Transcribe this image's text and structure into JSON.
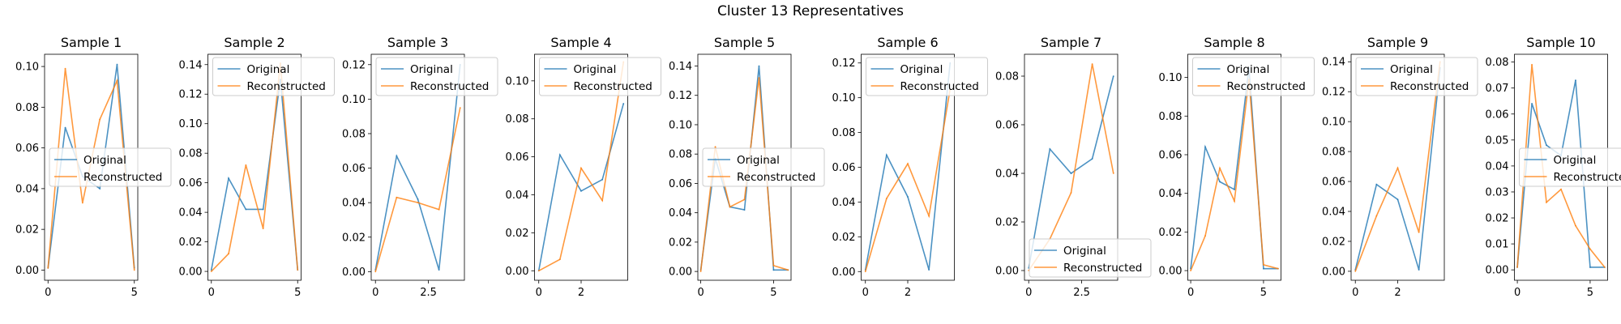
{
  "figure": {
    "suptitle": "Cluster 13 Representatives"
  },
  "chart_data": [
    {
      "type": "line",
      "title": "Sample 1",
      "xlabel": "",
      "ylabel": "",
      "xlim": [
        -0.2,
        5.2
      ],
      "ylim": [
        -0.005,
        0.106
      ],
      "xticks": [
        0,
        5
      ],
      "yticks": [
        0.0,
        0.02,
        0.04,
        0.06,
        0.08,
        0.1
      ],
      "ytick_decimals": 2,
      "legend": "center-left",
      "series": [
        {
          "name": "Original",
          "color": "#1f77b4",
          "x": [
            0,
            1,
            2,
            3,
            4,
            5
          ],
          "y": [
            0.001,
            0.07,
            0.046,
            0.04,
            0.101,
            0.001
          ]
        },
        {
          "name": "Reconstructed",
          "color": "#ff7f0e",
          "x": [
            0,
            1,
            2,
            3,
            4,
            5
          ],
          "y": [
            0.001,
            0.099,
            0.033,
            0.074,
            0.093,
            0.0
          ]
        }
      ]
    },
    {
      "type": "line",
      "title": "Sample 2",
      "xlabel": "",
      "ylabel": "",
      "xlim": [
        -0.2,
        5.2
      ],
      "ylim": [
        -0.006,
        0.147
      ],
      "xticks": [
        0,
        5
      ],
      "yticks": [
        0.0,
        0.02,
        0.04,
        0.06,
        0.08,
        0.1,
        0.12,
        0.14
      ],
      "ytick_decimals": 2,
      "legend": "upper-left",
      "series": [
        {
          "name": "Original",
          "color": "#1f77b4",
          "x": [
            0,
            1,
            2,
            3,
            4,
            5
          ],
          "y": [
            0.001,
            0.063,
            0.042,
            0.042,
            0.13,
            0.001
          ]
        },
        {
          "name": "Reconstructed",
          "color": "#ff7f0e",
          "x": [
            0,
            1,
            2,
            3,
            4,
            5
          ],
          "y": [
            0.0,
            0.012,
            0.072,
            0.029,
            0.141,
            0.001
          ]
        }
      ]
    },
    {
      "type": "line",
      "title": "Sample 3",
      "xlabel": "",
      "ylabel": "",
      "xlim": [
        -0.2,
        4.2
      ],
      "ylim": [
        -0.005,
        0.126
      ],
      "xticks": [
        0,
        2.5
      ],
      "yticks": [
        0.0,
        0.02,
        0.04,
        0.06,
        0.08,
        0.1,
        0.12
      ],
      "ytick_decimals": 2,
      "legend": "upper-left",
      "series": [
        {
          "name": "Original",
          "color": "#1f77b4",
          "x": [
            0,
            1,
            2,
            3,
            4
          ],
          "y": [
            0.001,
            0.067,
            0.042,
            0.001,
            0.12
          ]
        },
        {
          "name": "Reconstructed",
          "color": "#ff7f0e",
          "x": [
            0,
            1,
            2,
            3,
            4
          ],
          "y": [
            0.0,
            0.043,
            0.04,
            0.036,
            0.095
          ]
        }
      ]
    },
    {
      "type": "line",
      "title": "Sample 4",
      "xlabel": "",
      "ylabel": "",
      "xlim": [
        -0.2,
        4.2
      ],
      "ylim": [
        -0.005,
        0.114
      ],
      "xticks": [
        0,
        2
      ],
      "yticks": [
        0.0,
        0.02,
        0.04,
        0.06,
        0.08,
        0.1
      ],
      "ytick_decimals": 2,
      "legend": "upper-left",
      "series": [
        {
          "name": "Original",
          "color": "#1f77b4",
          "x": [
            0,
            1,
            2,
            3,
            4
          ],
          "y": [
            0.0,
            0.061,
            0.042,
            0.048,
            0.088
          ]
        },
        {
          "name": "Reconstructed",
          "color": "#ff7f0e",
          "x": [
            0,
            1,
            2,
            3,
            4
          ],
          "y": [
            0.0,
            0.006,
            0.054,
            0.037,
            0.11
          ]
        }
      ]
    },
    {
      "type": "line",
      "title": "Sample 5",
      "xlabel": "",
      "ylabel": "",
      "xlim": [
        -0.2,
        6.2
      ],
      "ylim": [
        -0.006,
        0.148
      ],
      "xticks": [
        0,
        5
      ],
      "yticks": [
        0.0,
        0.02,
        0.04,
        0.06,
        0.08,
        0.1,
        0.12,
        0.14
      ],
      "ytick_decimals": 2,
      "legend": "center-left",
      "series": [
        {
          "name": "Original",
          "color": "#1f77b4",
          "x": [
            0,
            1,
            2,
            3,
            4,
            5,
            6
          ],
          "y": [
            0.001,
            0.077,
            0.044,
            0.042,
            0.14,
            0.001,
            0.001
          ]
        },
        {
          "name": "Reconstructed",
          "color": "#ff7f0e",
          "x": [
            0,
            1,
            2,
            3,
            4,
            5,
            6
          ],
          "y": [
            0.0,
            0.085,
            0.044,
            0.049,
            0.132,
            0.004,
            0.001
          ]
        }
      ]
    },
    {
      "type": "line",
      "title": "Sample 6",
      "xlabel": "",
      "ylabel": "",
      "xlim": [
        -0.2,
        4.2
      ],
      "ylim": [
        -0.005,
        0.125
      ],
      "xticks": [
        0,
        2
      ],
      "yticks": [
        0.0,
        0.02,
        0.04,
        0.06,
        0.08,
        0.1,
        0.12
      ],
      "ytick_decimals": 2,
      "legend": "upper-left",
      "series": [
        {
          "name": "Original",
          "color": "#1f77b4",
          "x": [
            0,
            1,
            2,
            3,
            4
          ],
          "y": [
            0.001,
            0.067,
            0.043,
            0.001,
            0.12
          ]
        },
        {
          "name": "Reconstructed",
          "color": "#ff7f0e",
          "x": [
            0,
            1,
            2,
            3,
            4
          ],
          "y": [
            0.0,
            0.042,
            0.062,
            0.032,
            0.105
          ]
        }
      ]
    },
    {
      "type": "line",
      "title": "Sample 7",
      "xlabel": "",
      "ylabel": "",
      "xlim": [
        -0.2,
        4.2
      ],
      "ylim": [
        -0.004,
        0.089
      ],
      "xticks": [
        0,
        2.5
      ],
      "yticks": [
        0.0,
        0.02,
        0.04,
        0.06,
        0.08
      ],
      "ytick_decimals": 2,
      "legend": "lower-left",
      "series": [
        {
          "name": "Original",
          "color": "#1f77b4",
          "x": [
            0,
            1,
            2,
            3,
            4
          ],
          "y": [
            0.001,
            0.05,
            0.04,
            0.046,
            0.08
          ]
        },
        {
          "name": "Reconstructed",
          "color": "#ff7f0e",
          "x": [
            0,
            1,
            2,
            3,
            4
          ],
          "y": [
            0.0,
            0.013,
            0.032,
            0.085,
            0.04
          ]
        }
      ]
    },
    {
      "type": "line",
      "title": "Sample 8",
      "xlabel": "",
      "ylabel": "",
      "xlim": [
        -0.2,
        6.2
      ],
      "ylim": [
        -0.005,
        0.112
      ],
      "xticks": [
        0,
        5
      ],
      "yticks": [
        0.0,
        0.02,
        0.04,
        0.06,
        0.08,
        0.1
      ],
      "ytick_decimals": 2,
      "legend": "upper-left",
      "series": [
        {
          "name": "Original",
          "color": "#1f77b4",
          "x": [
            0,
            1,
            2,
            3,
            4,
            5,
            6
          ],
          "y": [
            0.001,
            0.064,
            0.046,
            0.042,
            0.105,
            0.001,
            0.001
          ]
        },
        {
          "name": "Reconstructed",
          "color": "#ff7f0e",
          "x": [
            0,
            1,
            2,
            3,
            4,
            5,
            6
          ],
          "y": [
            0.0,
            0.018,
            0.053,
            0.036,
            0.099,
            0.003,
            0.001
          ]
        }
      ]
    },
    {
      "type": "line",
      "title": "Sample 9",
      "xlabel": "",
      "ylabel": "",
      "xlim": [
        -0.2,
        4.2
      ],
      "ylim": [
        -0.006,
        0.145
      ],
      "xticks": [
        0,
        2
      ],
      "yticks": [
        0.0,
        0.02,
        0.04,
        0.06,
        0.08,
        0.1,
        0.12,
        0.14
      ],
      "ytick_decimals": 2,
      "legend": "upper-left",
      "series": [
        {
          "name": "Original",
          "color": "#1f77b4",
          "x": [
            0,
            1,
            2,
            3,
            4
          ],
          "y": [
            0.001,
            0.058,
            0.048,
            0.001,
            0.136
          ]
        },
        {
          "name": "Reconstructed",
          "color": "#ff7f0e",
          "x": [
            0,
            1,
            2,
            3,
            4
          ],
          "y": [
            0.0,
            0.037,
            0.069,
            0.026,
            0.14
          ]
        }
      ]
    },
    {
      "type": "line",
      "title": "Sample 10",
      "xlabel": "",
      "ylabel": "",
      "xlim": [
        -0.2,
        6.2
      ],
      "ylim": [
        -0.004,
        0.083
      ],
      "xticks": [
        0,
        5
      ],
      "yticks": [
        0.0,
        0.01,
        0.02,
        0.03,
        0.04,
        0.05,
        0.06,
        0.07,
        0.08
      ],
      "ytick_decimals": 2,
      "legend": "center-left",
      "series": [
        {
          "name": "Original",
          "color": "#1f77b4",
          "x": [
            0,
            1,
            2,
            3,
            4,
            5,
            6
          ],
          "y": [
            0.001,
            0.064,
            0.048,
            0.044,
            0.073,
            0.001,
            0.001
          ]
        },
        {
          "name": "Reconstructed",
          "color": "#ff7f0e",
          "x": [
            0,
            1,
            2,
            3,
            4,
            5,
            6
          ],
          "y": [
            0.001,
            0.079,
            0.026,
            0.031,
            0.017,
            0.008,
            0.001
          ]
        }
      ]
    }
  ]
}
